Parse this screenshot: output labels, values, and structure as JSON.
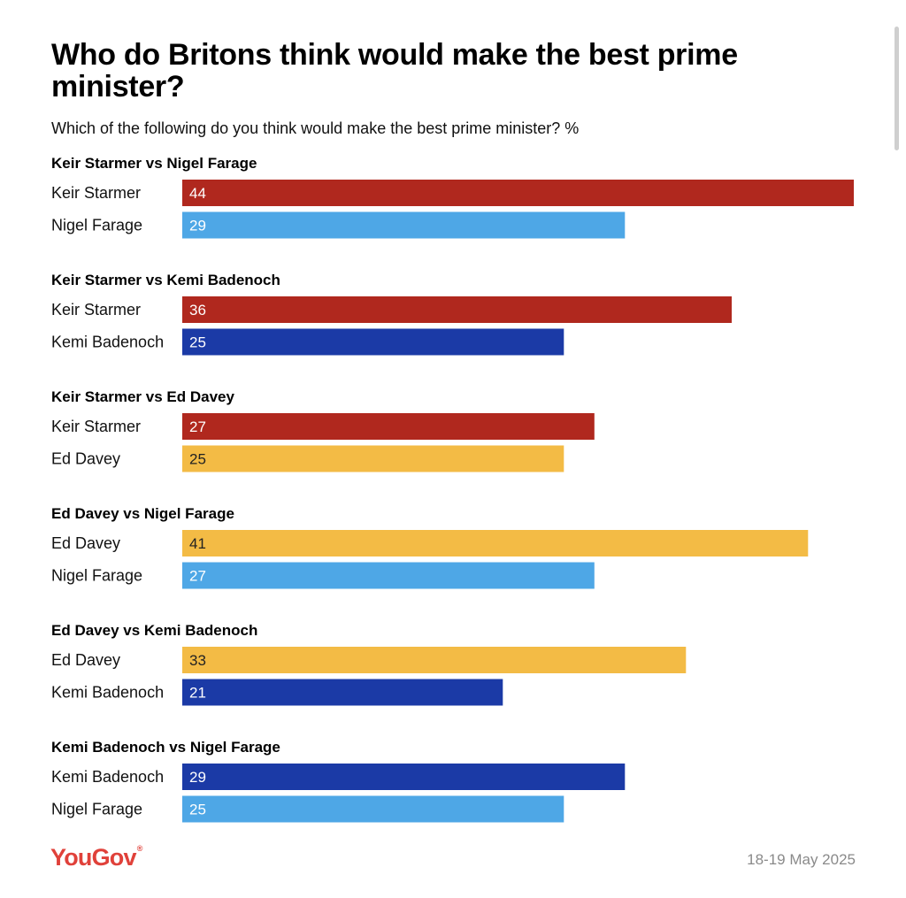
{
  "title": "Who do Britons think would make the best prime minister?",
  "subtitle": "Which of the following do you think would make the best prime minister? %",
  "logo_text": "YouGov",
  "logo_mark": "®",
  "date": "18-19 May 2025",
  "colors": {
    "Keir Starmer": "#b0281e",
    "Nigel Farage": "#4ea7e6",
    "Kemi Badenoch": "#1b3aa6",
    "Ed Davey": "#f3bb45"
  },
  "chart_data": {
    "type": "bar",
    "orientation": "horizontal",
    "title": "Who do Britons think would make the best prime minister?",
    "subtitle": "Which of the following do you think would make the best prime minister? %",
    "xlim": [
      0,
      44
    ],
    "grid": false,
    "legend": "none",
    "groups": [
      {
        "title": "Keir Starmer vs Nigel Farage",
        "bars": [
          {
            "label": "Keir Starmer",
            "value": 44
          },
          {
            "label": "Nigel Farage",
            "value": 29
          }
        ]
      },
      {
        "title": "Keir Starmer vs Kemi Badenoch",
        "bars": [
          {
            "label": "Keir Starmer",
            "value": 36
          },
          {
            "label": "Kemi Badenoch",
            "value": 25
          }
        ]
      },
      {
        "title": "Keir Starmer vs Ed Davey",
        "bars": [
          {
            "label": "Keir Starmer",
            "value": 27
          },
          {
            "label": "Ed Davey",
            "value": 25
          }
        ]
      },
      {
        "title": "Ed Davey vs Nigel Farage",
        "bars": [
          {
            "label": "Ed Davey",
            "value": 41
          },
          {
            "label": "Nigel Farage",
            "value": 27
          }
        ]
      },
      {
        "title": "Ed Davey vs Kemi Badenoch",
        "bars": [
          {
            "label": "Ed Davey",
            "value": 33
          },
          {
            "label": "Kemi Badenoch",
            "value": 21
          }
        ]
      },
      {
        "title": "Kemi Badenoch vs Nigel Farage",
        "bars": [
          {
            "label": "Kemi Badenoch",
            "value": 29
          },
          {
            "label": "Nigel Farage",
            "value": 25
          }
        ]
      }
    ]
  }
}
